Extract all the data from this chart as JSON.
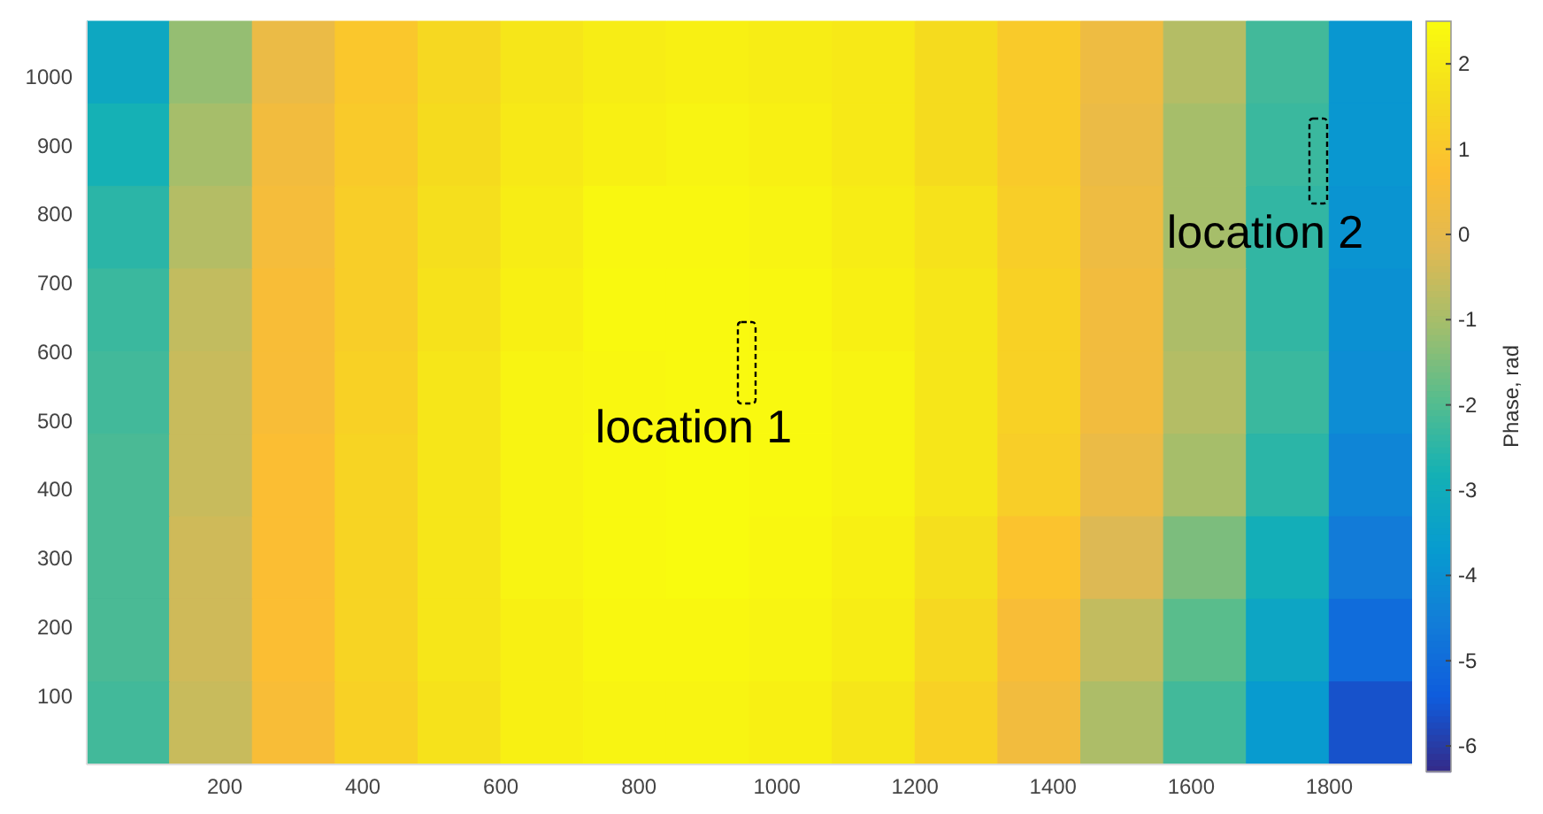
{
  "chart_data": {
    "type": "heatmap",
    "clabel": "Phase, rad",
    "x": [
      60,
      180,
      300,
      420,
      540,
      660,
      780,
      900,
      1020,
      1140,
      1260,
      1380,
      1500,
      1620,
      1740,
      1860
    ],
    "y": [
      1020,
      900,
      780,
      660,
      540,
      420,
      300,
      180,
      60
    ],
    "cells": [
      [
        -3.2,
        -1.2,
        0.2,
        1.0,
        1.5,
        1.9,
        2.1,
        2.2,
        2.1,
        2.0,
        1.6,
        1.1,
        0.3,
        -0.8,
        -2.2,
        -3.8
      ],
      [
        -2.8,
        -1.0,
        0.4,
        1.1,
        1.6,
        2.0,
        2.2,
        2.3,
        2.2,
        2.0,
        1.6,
        1.1,
        0.2,
        -1.0,
        -2.3,
        -3.8
      ],
      [
        -2.5,
        -0.8,
        0.5,
        1.2,
        1.7,
        2.1,
        2.4,
        2.4,
        2.3,
        2.1,
        1.8,
        1.2,
        0.3,
        -1.0,
        -2.4,
        -3.9
      ],
      [
        -2.3,
        -0.6,
        0.6,
        1.2,
        1.8,
        2.2,
        2.45,
        2.45,
        2.4,
        2.2,
        1.9,
        1.3,
        0.4,
        -0.9,
        -2.4,
        -4.0
      ],
      [
        -2.2,
        -0.5,
        0.6,
        1.3,
        1.9,
        2.3,
        2.4,
        2.45,
        2.45,
        2.3,
        1.9,
        1.3,
        0.4,
        -0.8,
        -2.3,
        -4.1
      ],
      [
        -2.1,
        -0.5,
        0.7,
        1.4,
        1.9,
        2.3,
        2.45,
        2.5,
        2.45,
        2.3,
        1.9,
        1.2,
        0.2,
        -1.0,
        -2.5,
        -4.3
      ],
      [
        -2.1,
        -0.4,
        0.7,
        1.4,
        1.9,
        2.3,
        2.45,
        2.5,
        2.4,
        2.2,
        1.7,
        0.9,
        -0.2,
        -1.5,
        -2.9,
        -4.6
      ],
      [
        -2.1,
        -0.4,
        0.7,
        1.4,
        1.9,
        2.2,
        2.4,
        2.4,
        2.3,
        2.1,
        1.5,
        0.6,
        -0.6,
        -1.9,
        -3.3,
        -5.0
      ],
      [
        -2.2,
        -0.5,
        0.6,
        1.3,
        1.8,
        2.2,
        2.3,
        2.3,
        2.2,
        1.9,
        1.3,
        0.4,
        -0.9,
        -2.2,
        -3.7,
        -5.6
      ]
    ],
    "clim": [
      -6.3,
      2.5
    ],
    "cticks": [
      -6,
      -5,
      -4,
      -3,
      -2,
      -1,
      0,
      1,
      2
    ],
    "xlim": [
      0,
      1920
    ],
    "xticks": [
      200,
      400,
      600,
      800,
      1000,
      1200,
      1400,
      1600,
      1800
    ],
    "ylim": [
      0,
      1080
    ],
    "yticks": [
      100,
      200,
      300,
      400,
      500,
      600,
      700,
      800,
      900,
      1000
    ],
    "annotations": [
      "location 1",
      "location 2"
    ]
  }
}
